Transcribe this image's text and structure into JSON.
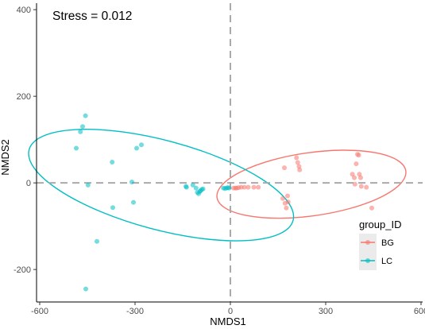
{
  "chart_data": {
    "type": "scatter",
    "xlabel": "NMDS1",
    "ylabel": "NMDS2",
    "xlim": [
      -610,
      605
    ],
    "ylim": [
      -275,
      415
    ],
    "xticks": [
      -600,
      -300,
      0,
      300,
      600
    ],
    "yticks": [
      -200,
      0,
      200,
      400
    ],
    "annotation": "Stress = 0.012",
    "reference_lines": {
      "x": 0,
      "y": 0,
      "style": "dashed",
      "color": "#aaaaaa"
    },
    "grid": false,
    "legend": {
      "title": "group_ID",
      "placement": "right",
      "entries": [
        {
          "name": "BG",
          "color": "#f8766d"
        },
        {
          "name": "LC",
          "color": "#00bfc4"
        }
      ]
    },
    "series": [
      {
        "name": "BG",
        "color": "#f8766d",
        "points": [
          [
            10,
            -12
          ],
          [
            16,
            -12
          ],
          [
            20,
            -12
          ],
          [
            26,
            -11
          ],
          [
            34,
            -10
          ],
          [
            44,
            -10
          ],
          [
            56,
            -10
          ],
          [
            74,
            -10
          ],
          [
            88,
            -10
          ],
          [
            165,
            -36
          ],
          [
            172,
            -47
          ],
          [
            176,
            -58
          ],
          [
            182,
            -44
          ],
          [
            180,
            -30
          ],
          [
            170,
            35
          ],
          [
            208,
            58
          ],
          [
            212,
            47
          ],
          [
            216,
            38
          ],
          [
            218,
            30
          ],
          [
            384,
            20
          ],
          [
            390,
            12
          ],
          [
            392,
            -3
          ],
          [
            396,
            44
          ],
          [
            400,
            66
          ],
          [
            404,
            64
          ],
          [
            406,
            20
          ],
          [
            410,
            12
          ],
          [
            412,
            -8
          ],
          [
            428,
            -10
          ],
          [
            445,
            -58
          ]
        ],
        "ellipse": {
          "cx": 255,
          "cy": -3,
          "rx": 300,
          "ry": 73,
          "rotation_deg": 8
        }
      },
      {
        "name": "LC",
        "color": "#00bfc4",
        "points": [
          [
            -485,
            80
          ],
          [
            -472,
            118
          ],
          [
            -465,
            130
          ],
          [
            -456,
            155
          ],
          [
            -448,
            -5
          ],
          [
            -455,
            -245
          ],
          [
            -420,
            -135
          ],
          [
            -372,
            48
          ],
          [
            -370,
            -57
          ],
          [
            -310,
            2
          ],
          [
            -305,
            -45
          ],
          [
            -295,
            80
          ],
          [
            -280,
            88
          ],
          [
            -140,
            -8
          ],
          [
            -138,
            -10
          ],
          [
            -118,
            -5
          ],
          [
            -108,
            -12
          ],
          [
            -104,
            -22
          ],
          [
            -100,
            -25
          ],
          [
            -96,
            -20
          ],
          [
            -94,
            -18
          ],
          [
            -90,
            -15
          ],
          [
            -86,
            -14
          ],
          [
            -22,
            -12
          ],
          [
            -17,
            -13
          ],
          [
            -12,
            -12
          ],
          [
            -8,
            -11
          ],
          [
            -4,
            -12
          ]
        ],
        "ellipse": {
          "cx": -218,
          "cy": -5,
          "rx": 430,
          "ry": 103,
          "rotation_deg": -15
        }
      }
    ]
  }
}
